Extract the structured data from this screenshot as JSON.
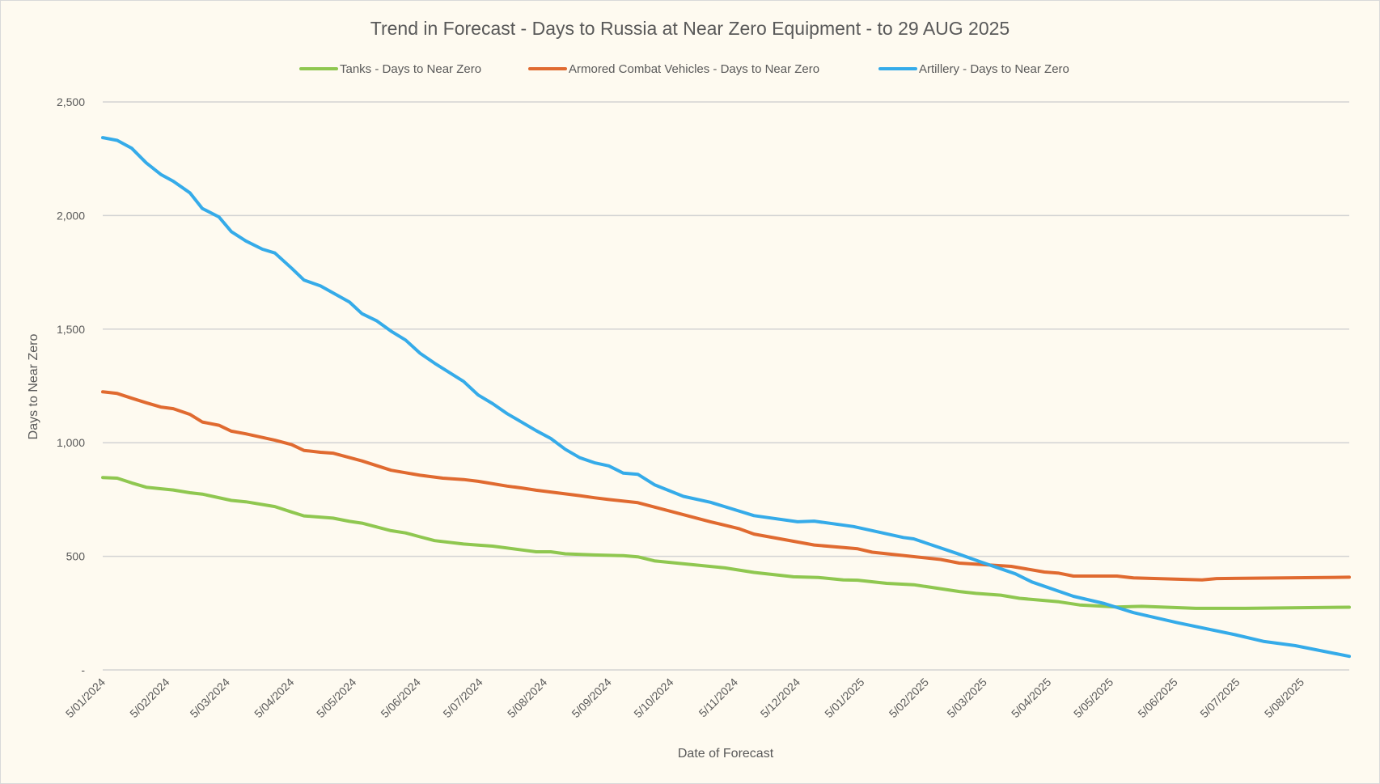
{
  "chart_data": {
    "type": "line",
    "title": "Trend in Forecast - Days to Russia at Near Zero Equipment - to 29 AUG 2025",
    "xlabel": "Date of Forecast",
    "ylabel": "Days to Near Zero",
    "x_units": "days since 5/01/2024",
    "xlim": [
      0,
      601
    ],
    "ylim": [
      0,
      2500
    ],
    "y_ticks": [
      {
        "value": 0,
        "label": "-"
      },
      {
        "value": 500,
        "label": "500"
      },
      {
        "value": 1000,
        "label": "1,000"
      },
      {
        "value": 1500,
        "label": "1,500"
      },
      {
        "value": 2000,
        "label": "2,000"
      },
      {
        "value": 2500,
        "label": "2,500"
      }
    ],
    "x_ticks": [
      {
        "value": 0,
        "label": "5/01/2024"
      },
      {
        "value": 31,
        "label": "5/02/2024"
      },
      {
        "value": 60,
        "label": "5/03/2024"
      },
      {
        "value": 91,
        "label": "5/04/2024"
      },
      {
        "value": 121,
        "label": "5/05/2024"
      },
      {
        "value": 152,
        "label": "5/06/2024"
      },
      {
        "value": 182,
        "label": "5/07/2024"
      },
      {
        "value": 213,
        "label": "5/08/2024"
      },
      {
        "value": 244,
        "label": "5/09/2024"
      },
      {
        "value": 274,
        "label": "5/10/2024"
      },
      {
        "value": 305,
        "label": "5/11/2024"
      },
      {
        "value": 335,
        "label": "5/12/2024"
      },
      {
        "value": 366,
        "label": "5/01/2025"
      },
      {
        "value": 397,
        "label": "5/02/2025"
      },
      {
        "value": 425,
        "label": "5/03/2025"
      },
      {
        "value": 456,
        "label": "5/04/2025"
      },
      {
        "value": 486,
        "label": "5/05/2025"
      },
      {
        "value": 517,
        "label": "5/06/2025"
      },
      {
        "value": 547,
        "label": "5/07/2025"
      },
      {
        "value": 578,
        "label": "5/08/2025"
      }
    ],
    "grid": true,
    "legend_position": "top",
    "series": [
      {
        "name": "Tanks - Days to Near Zero",
        "color": "#8fc750",
        "points": [
          [
            0,
            847
          ],
          [
            7,
            844
          ],
          [
            14,
            823
          ],
          [
            21,
            804
          ],
          [
            34,
            792
          ],
          [
            42,
            780
          ],
          [
            48,
            774
          ],
          [
            62,
            746
          ],
          [
            69,
            740
          ],
          [
            83,
            719
          ],
          [
            91,
            695
          ],
          [
            97,
            678
          ],
          [
            111,
            668
          ],
          [
            119,
            654
          ],
          [
            125,
            646
          ],
          [
            139,
            613
          ],
          [
            146,
            603
          ],
          [
            153,
            586
          ],
          [
            160,
            569
          ],
          [
            174,
            554
          ],
          [
            181,
            549
          ],
          [
            188,
            545
          ],
          [
            202,
            528
          ],
          [
            209,
            520
          ],
          [
            216,
            520
          ],
          [
            223,
            511
          ],
          [
            237,
            506
          ],
          [
            251,
            503
          ],
          [
            258,
            498
          ],
          [
            266,
            480
          ],
          [
            300,
            449
          ],
          [
            314,
            429
          ],
          [
            333,
            410
          ],
          [
            345,
            407
          ],
          [
            357,
            396
          ],
          [
            364,
            395
          ],
          [
            378,
            381
          ],
          [
            391,
            375
          ],
          [
            413,
            345
          ],
          [
            421,
            337
          ],
          [
            433,
            329
          ],
          [
            442,
            315
          ],
          [
            461,
            300
          ],
          [
            471,
            286
          ],
          [
            483,
            280
          ],
          [
            489,
            277
          ],
          [
            501,
            280
          ],
          [
            527,
            271
          ],
          [
            551,
            271
          ],
          [
            601,
            276
          ]
        ]
      },
      {
        "name": "Armored Combat Vehicles - Days to Near Zero",
        "color": "#e06a30",
        "points": [
          [
            0,
            1224
          ],
          [
            7,
            1217
          ],
          [
            14,
            1196
          ],
          [
            21,
            1176
          ],
          [
            28,
            1157
          ],
          [
            34,
            1150
          ],
          [
            42,
            1125
          ],
          [
            48,
            1091
          ],
          [
            56,
            1077
          ],
          [
            62,
            1051
          ],
          [
            69,
            1039
          ],
          [
            83,
            1011
          ],
          [
            91,
            992
          ],
          [
            97,
            966
          ],
          [
            105,
            958
          ],
          [
            111,
            954
          ],
          [
            125,
            920
          ],
          [
            139,
            879
          ],
          [
            153,
            857
          ],
          [
            164,
            844
          ],
          [
            174,
            838
          ],
          [
            181,
            830
          ],
          [
            195,
            809
          ],
          [
            202,
            801
          ],
          [
            209,
            791
          ],
          [
            230,
            767
          ],
          [
            237,
            758
          ],
          [
            244,
            750
          ],
          [
            258,
            736
          ],
          [
            266,
            717
          ],
          [
            293,
            652
          ],
          [
            307,
            621
          ],
          [
            314,
            598
          ],
          [
            343,
            550
          ],
          [
            364,
            533
          ],
          [
            371,
            518
          ],
          [
            404,
            486
          ],
          [
            413,
            470
          ],
          [
            438,
            456
          ],
          [
            454,
            431
          ],
          [
            461,
            426
          ],
          [
            468,
            413
          ],
          [
            489,
            413
          ],
          [
            497,
            405
          ],
          [
            530,
            396
          ],
          [
            537,
            402
          ],
          [
            601,
            408
          ]
        ]
      },
      {
        "name": "Artillery - Days to Near Zero",
        "color": "#35abe9",
        "points": [
          [
            0,
            2343
          ],
          [
            7,
            2331
          ],
          [
            14,
            2296
          ],
          [
            21,
            2232
          ],
          [
            28,
            2181
          ],
          [
            34,
            2151
          ],
          [
            42,
            2100
          ],
          [
            48,
            2031
          ],
          [
            56,
            1994
          ],
          [
            62,
            1929
          ],
          [
            69,
            1888
          ],
          [
            77,
            1852
          ],
          [
            83,
            1835
          ],
          [
            91,
            1769
          ],
          [
            97,
            1716
          ],
          [
            105,
            1690
          ],
          [
            119,
            1619
          ],
          [
            125,
            1568
          ],
          [
            132,
            1537
          ],
          [
            139,
            1491
          ],
          [
            146,
            1452
          ],
          [
            153,
            1394
          ],
          [
            160,
            1350
          ],
          [
            174,
            1270
          ],
          [
            181,
            1210
          ],
          [
            188,
            1172
          ],
          [
            195,
            1128
          ],
          [
            209,
            1053
          ],
          [
            216,
            1019
          ],
          [
            223,
            971
          ],
          [
            230,
            934
          ],
          [
            237,
            912
          ],
          [
            244,
            898
          ],
          [
            251,
            866
          ],
          [
            258,
            861
          ],
          [
            266,
            815
          ],
          [
            280,
            764
          ],
          [
            293,
            738
          ],
          [
            314,
            679
          ],
          [
            335,
            652
          ],
          [
            343,
            655
          ],
          [
            362,
            631
          ],
          [
            386,
            583
          ],
          [
            391,
            577
          ],
          [
            412,
            512
          ],
          [
            423,
            476
          ],
          [
            440,
            423
          ],
          [
            448,
            387
          ],
          [
            468,
            324
          ],
          [
            483,
            292
          ],
          [
            497,
            252
          ],
          [
            518,
            208
          ],
          [
            546,
            155
          ],
          [
            560,
            125
          ],
          [
            575,
            107
          ],
          [
            601,
            60
          ]
        ]
      }
    ]
  }
}
